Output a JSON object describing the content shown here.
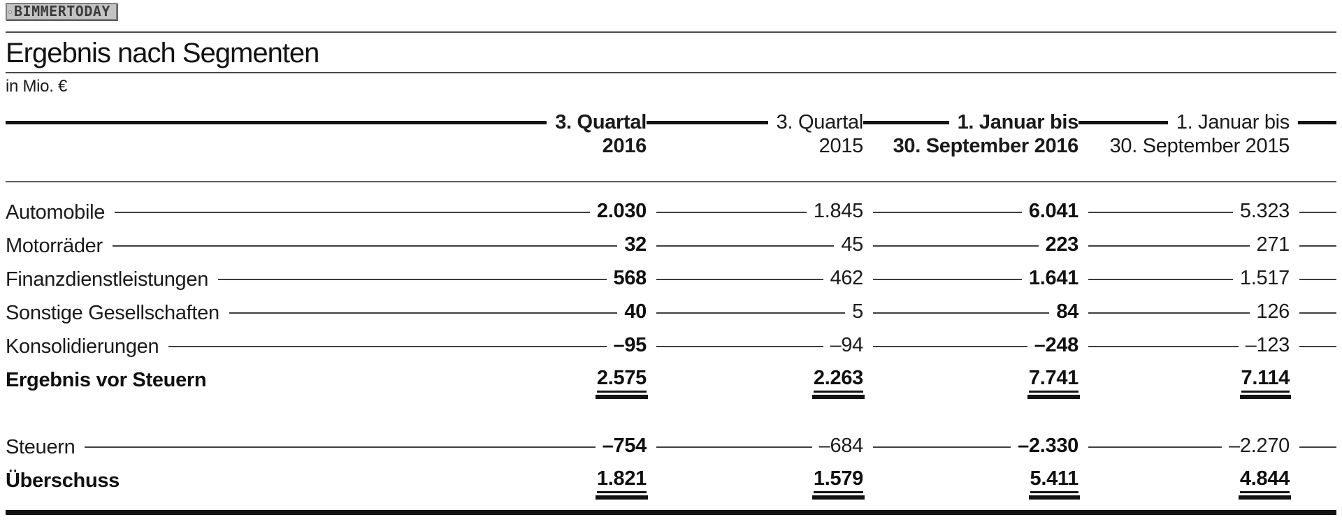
{
  "logo": {
    "text": "BIMMERTODAY"
  },
  "header": {
    "title": "Ergebnis nach Segmenten",
    "unit": "in Mio. €"
  },
  "table": {
    "columns": [
      {
        "line1": "3. Quartal",
        "line2": "2016",
        "emphasis": "bold"
      },
      {
        "line1": "3. Quartal",
        "line2": "2015",
        "emphasis": "regular"
      },
      {
        "line1": "1. Januar bis",
        "line2": "30. September 2016",
        "emphasis": "bold"
      },
      {
        "line1": "1. Januar bis",
        "line2": "30. September 2015",
        "emphasis": "regular"
      }
    ],
    "rows": [
      {
        "label": "Automobile",
        "values": [
          "2.030",
          "1.845",
          "6.041",
          "5.323"
        ]
      },
      {
        "label": "Motorräder",
        "values": [
          "32",
          "45",
          "223",
          "271"
        ]
      },
      {
        "label": "Finanzdienstleistungen",
        "values": [
          "568",
          "462",
          "1.641",
          "1.517"
        ]
      },
      {
        "label": "Sonstige Gesellschaften",
        "values": [
          "40",
          "5",
          "84",
          "126"
        ]
      },
      {
        "label": "Konsolidierungen",
        "values": [
          "–95",
          "–94",
          "–248",
          "–123"
        ]
      },
      {
        "label": "Ergebnis vor Steuern",
        "values": [
          "2.575",
          "2.263",
          "7.741",
          "7.114"
        ]
      },
      {
        "label": "Steuern",
        "values": [
          "–754",
          "–684",
          "–2.330",
          "–2.270"
        ]
      },
      {
        "label": "Überschuss",
        "values": [
          "1.821",
          "1.579",
          "5.411",
          "4.844"
        ]
      }
    ]
  },
  "chart_data": {
    "type": "table",
    "title": "Ergebnis nach Segmenten",
    "unit": "in Mio. €",
    "columns": [
      "3. Quartal 2016",
      "3. Quartal 2015",
      "1. Januar bis 30. September 2016",
      "1. Januar bis 30. September 2015"
    ],
    "rows": [
      {
        "label": "Automobile",
        "values": [
          2030,
          1845,
          6041,
          5323
        ]
      },
      {
        "label": "Motorräder",
        "values": [
          32,
          45,
          223,
          271
        ]
      },
      {
        "label": "Finanzdienstleistungen",
        "values": [
          568,
          462,
          1641,
          1517
        ]
      },
      {
        "label": "Sonstige Gesellschaften",
        "values": [
          40,
          5,
          84,
          126
        ]
      },
      {
        "label": "Konsolidierungen",
        "values": [
          -95,
          -94,
          -248,
          -123
        ]
      },
      {
        "label": "Ergebnis vor Steuern",
        "values": [
          2575,
          2263,
          7741,
          7114
        ],
        "total": true
      },
      {
        "label": "Steuern",
        "values": [
          -754,
          -684,
          -2330,
          -2270
        ]
      },
      {
        "label": "Überschuss",
        "values": [
          1821,
          1579,
          5411,
          4844
        ],
        "total": true
      }
    ],
    "layout": {
      "bold_columns": [
        0,
        2
      ],
      "total_rows": [
        5,
        7
      ],
      "grid": "leader-lines"
    }
  },
  "colors": {
    "text": "#1a1a1a",
    "thick_line": "#121212",
    "hairline": "#4a4a4a",
    "plate_bg": "#c3c3c3",
    "plate_border": "#7e7e7e"
  }
}
